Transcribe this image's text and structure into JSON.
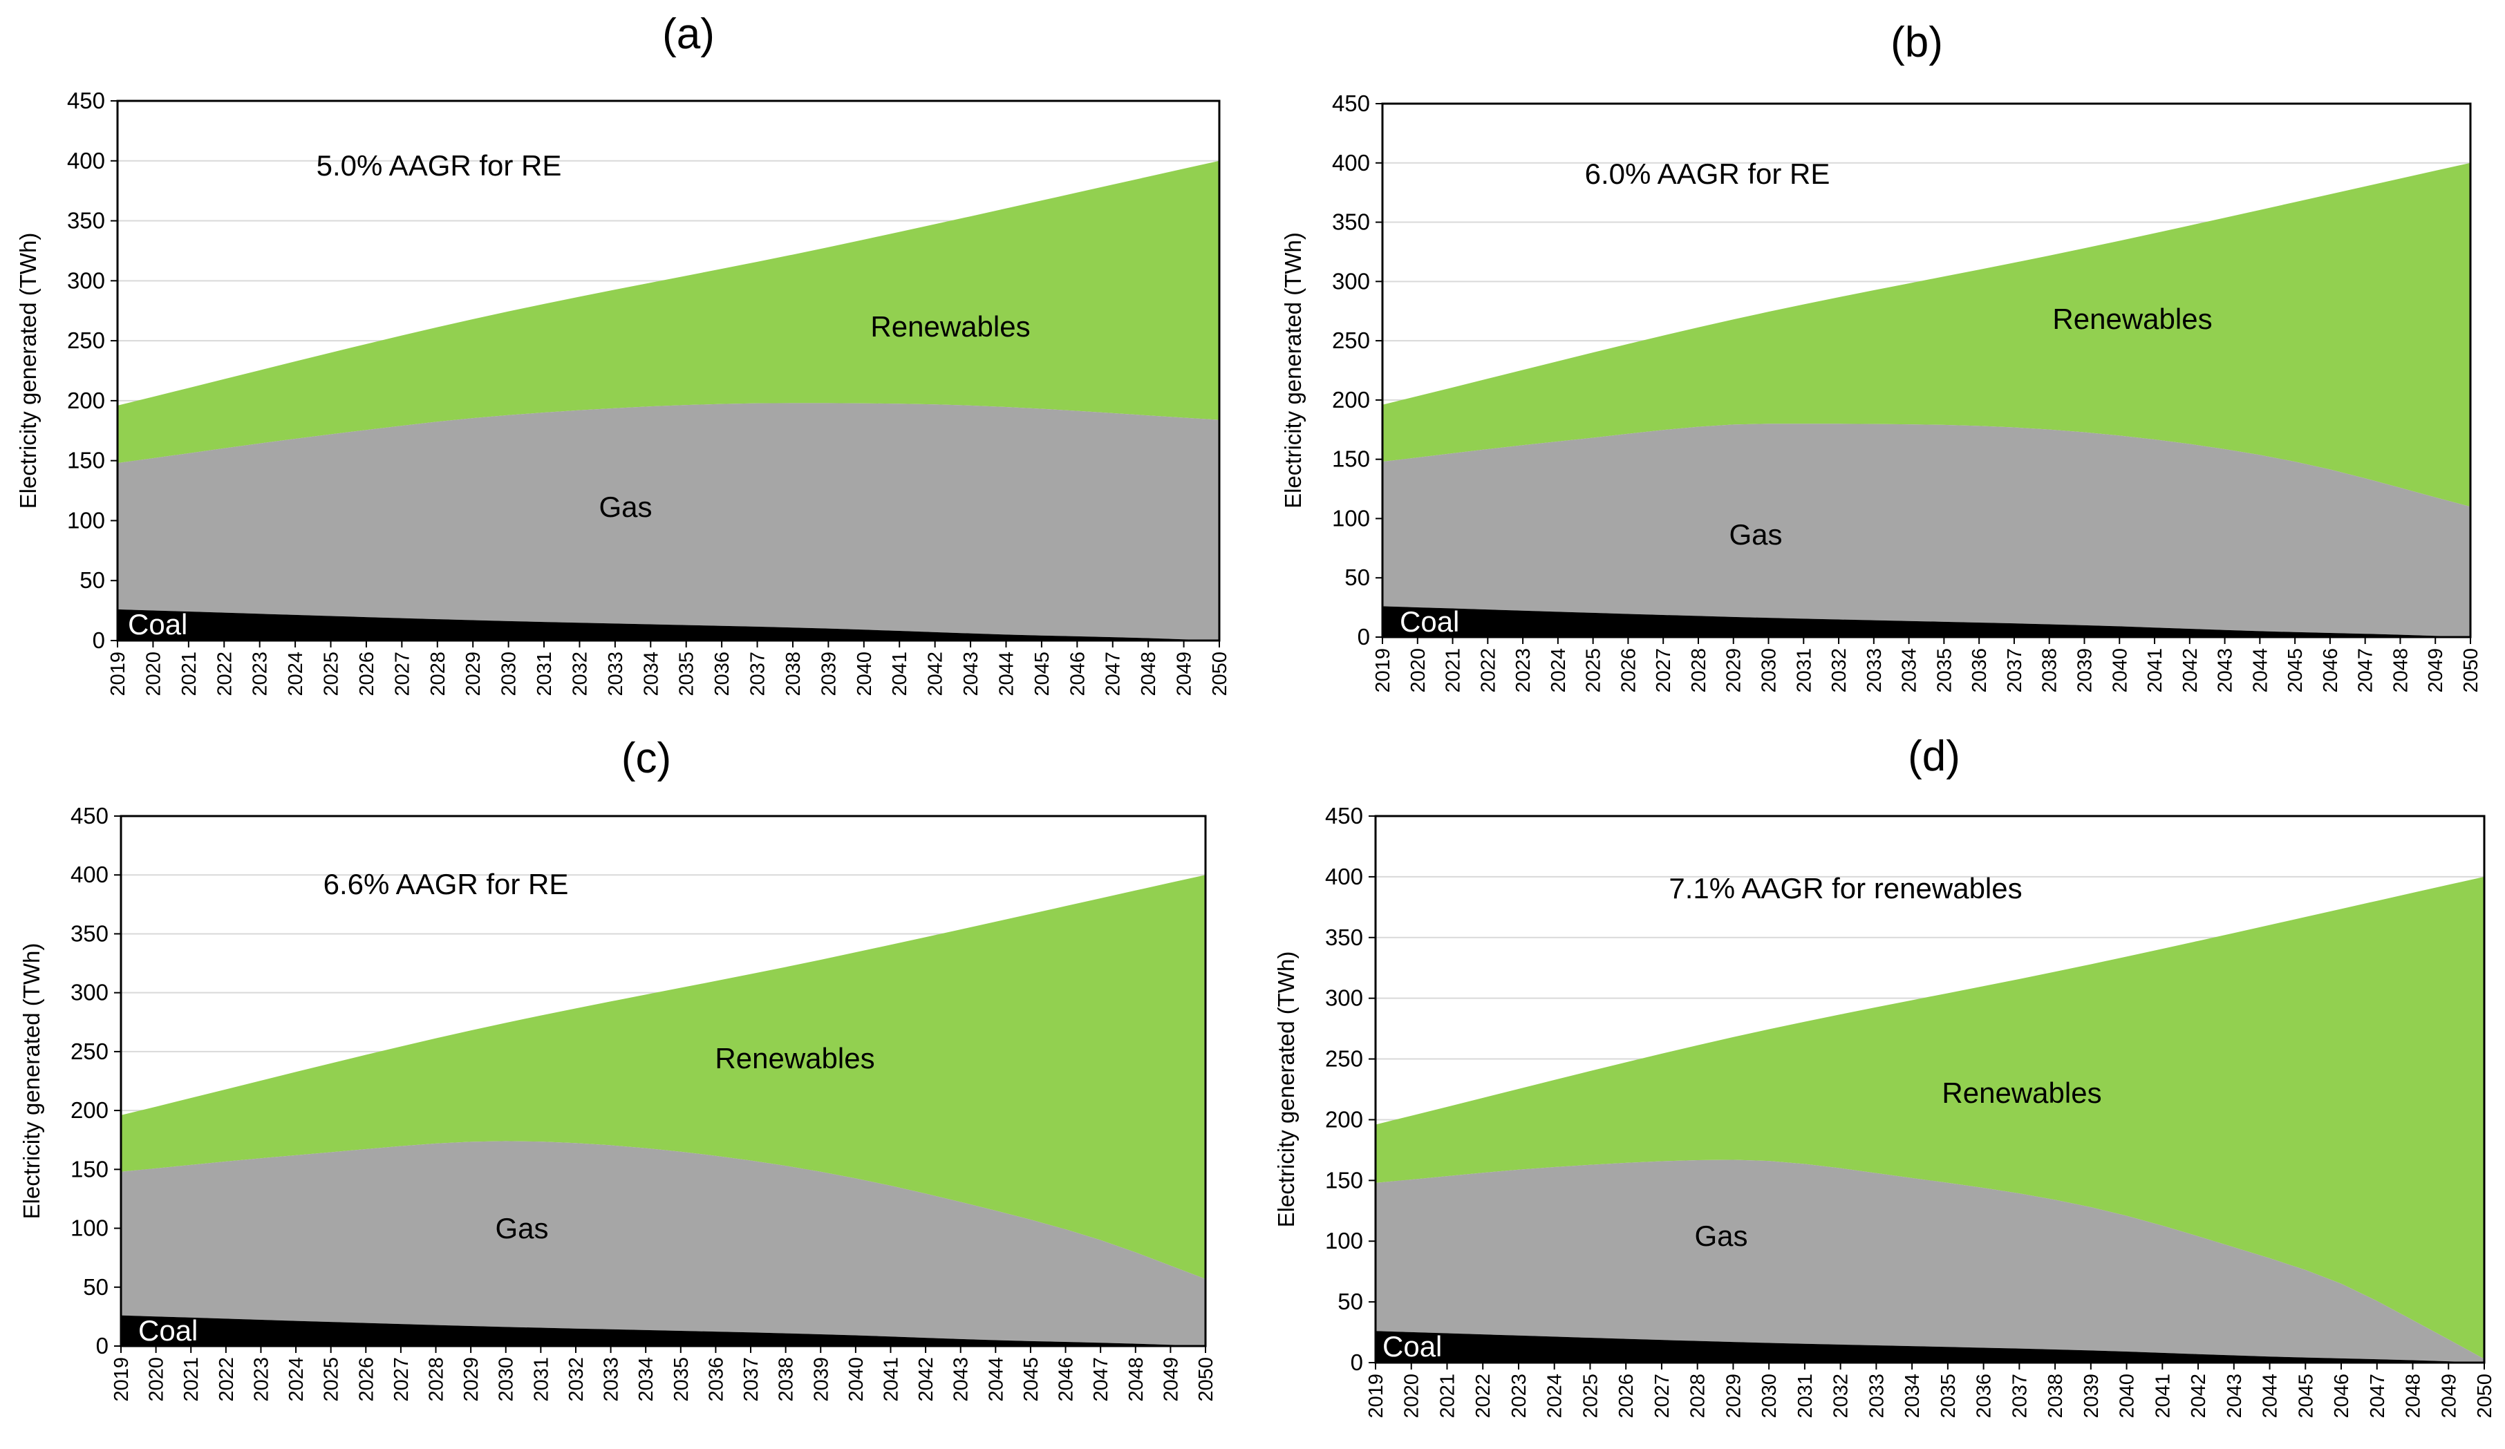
{
  "chart_data": [
    {
      "id": "a",
      "type": "area",
      "title": "(a)",
      "annotation": "5.0% AAGR for RE",
      "xlabel": "",
      "ylabel": "Electricity generated (TWh)",
      "ylim": [
        0,
        450
      ],
      "yticks": [
        "0",
        "50",
        "100",
        "150",
        "200",
        "250",
        "300",
        "350",
        "400",
        "450"
      ],
      "categories": [
        "2019",
        "2020",
        "2021",
        "2022",
        "2023",
        "2024",
        "2025",
        "2026",
        "2027",
        "2028",
        "2029",
        "2030",
        "2031",
        "2032",
        "2033",
        "2034",
        "2035",
        "2036",
        "2037",
        "2038",
        "2039",
        "2040",
        "2041",
        "2042",
        "2043",
        "2044",
        "2045",
        "2046",
        "2047",
        "2048",
        "2049",
        "2050"
      ],
      "series_labels": {
        "renewables": "Renewables",
        "gas": "Gas",
        "coal": "Coal"
      },
      "total_knots": {
        "x": [
          0,
          10,
          20,
          31
        ],
        "y": [
          196,
          268,
          328,
          400
        ]
      },
      "gas_top_knots": {
        "x": [
          0,
          6,
          11,
          19,
          24,
          31
        ],
        "y": [
          148,
          172,
          188,
          198,
          196,
          184
        ]
      },
      "coal_knots": {
        "x": [
          0,
          10,
          20,
          25,
          29,
          31
        ],
        "y": [
          26,
          17,
          10,
          5,
          2,
          0
        ]
      }
    },
    {
      "id": "b",
      "type": "area",
      "title": "(b)",
      "annotation": "6.0% AAGR for RE",
      "xlabel": "",
      "ylabel": "Electricity generated (TWh)",
      "ylim": [
        0,
        450
      ],
      "yticks": [
        "0",
        "50",
        "100",
        "150",
        "200",
        "250",
        "300",
        "350",
        "400",
        "450"
      ],
      "categories": [
        "2019",
        "2020",
        "2021",
        "2022",
        "2023",
        "2024",
        "2025",
        "2026",
        "2027",
        "2028",
        "2029",
        "2030",
        "2031",
        "2032",
        "2033",
        "2034",
        "2035",
        "2036",
        "2037",
        "2038",
        "2039",
        "2040",
        "2041",
        "2042",
        "2043",
        "2044",
        "2045",
        "2046",
        "2047",
        "2048",
        "2049",
        "2050"
      ],
      "series_labels": {
        "renewables": "Renewables",
        "gas": "Gas",
        "coal": "Coal"
      },
      "total_knots": {
        "x": [
          0,
          10,
          20,
          31
        ],
        "y": [
          196,
          268,
          328,
          400
        ]
      },
      "gas_top_knots": {
        "x": [
          0,
          5,
          11,
          16,
          21,
          26,
          31
        ],
        "y": [
          148,
          165,
          180,
          179,
          170,
          148,
          110
        ]
      },
      "coal_knots": {
        "x": [
          0,
          10,
          20,
          25,
          29,
          31
        ],
        "y": [
          26,
          17,
          10,
          5,
          2,
          0
        ]
      }
    },
    {
      "id": "c",
      "type": "area",
      "title": "(c)",
      "annotation": "6.6% AAGR for RE",
      "xlabel": "",
      "ylabel": "Electricity generated (TWh)",
      "ylim": [
        0,
        450
      ],
      "yticks": [
        "0",
        "50",
        "100",
        "150",
        "200",
        "250",
        "300",
        "350",
        "400",
        "450"
      ],
      "categories": [
        "2019",
        "2020",
        "2021",
        "2022",
        "2023",
        "2024",
        "2025",
        "2026",
        "2027",
        "2028",
        "2029",
        "2030",
        "2031",
        "2032",
        "2033",
        "2034",
        "2035",
        "2036",
        "2037",
        "2038",
        "2039",
        "2040",
        "2041",
        "2042",
        "2043",
        "2044",
        "2045",
        "2046",
        "2047",
        "2048",
        "2049",
        "2050"
      ],
      "series_labels": {
        "renewables": "Renewables",
        "gas": "Gas",
        "coal": "Coal"
      },
      "total_knots": {
        "x": [
          0,
          10,
          20,
          31
        ],
        "y": [
          196,
          268,
          328,
          400
        ]
      },
      "gas_top_knots": {
        "x": [
          0,
          5,
          11,
          15,
          20,
          25,
          28,
          31
        ],
        "y": [
          148,
          162,
          174,
          168,
          148,
          115,
          90,
          57
        ]
      },
      "coal_knots": {
        "x": [
          0,
          10,
          20,
          25,
          29,
          31
        ],
        "y": [
          26,
          17,
          10,
          5,
          2,
          0
        ]
      }
    },
    {
      "id": "d",
      "type": "area",
      "title": "(d)",
      "annotation": "7.1% AAGR for renewables",
      "xlabel": "",
      "ylabel": "Electricity generated (TWh)",
      "ylim": [
        0,
        450
      ],
      "yticks": [
        "0",
        "50",
        "100",
        "150",
        "200",
        "250",
        "300",
        "350",
        "400",
        "450"
      ],
      "categories": [
        "2019",
        "2020",
        "2021",
        "2022",
        "2023",
        "2024",
        "2025",
        "2026",
        "2027",
        "2028",
        "2029",
        "2030",
        "2031",
        "2032",
        "2033",
        "2034",
        "2035",
        "2036",
        "2037",
        "2038",
        "2039",
        "2040",
        "2041",
        "2042",
        "2043",
        "2044",
        "2045",
        "2046",
        "2047",
        "2048",
        "2049",
        "2050"
      ],
      "series_labels": {
        "renewables": "Renewables",
        "gas": "Gas",
        "coal": "Coal"
      },
      "total_knots": {
        "x": [
          0,
          10,
          20,
          31
        ],
        "y": [
          196,
          268,
          328,
          400
        ]
      },
      "gas_top_knots": {
        "x": [
          0,
          5,
          10,
          15,
          20,
          24,
          27,
          29,
          31
        ],
        "y": [
          148,
          161,
          167,
          152,
          128,
          95,
          65,
          35,
          3
        ]
      },
      "coal_knots": {
        "x": [
          0,
          10,
          20,
          25,
          29,
          31
        ],
        "y": [
          26,
          17,
          10,
          5,
          2,
          0
        ]
      }
    }
  ],
  "colors": {
    "renewables": "#92D050",
    "gas": "#A6A6A6",
    "coal": "#000000",
    "axis": "#000000",
    "grid": "#D9D9D9"
  }
}
